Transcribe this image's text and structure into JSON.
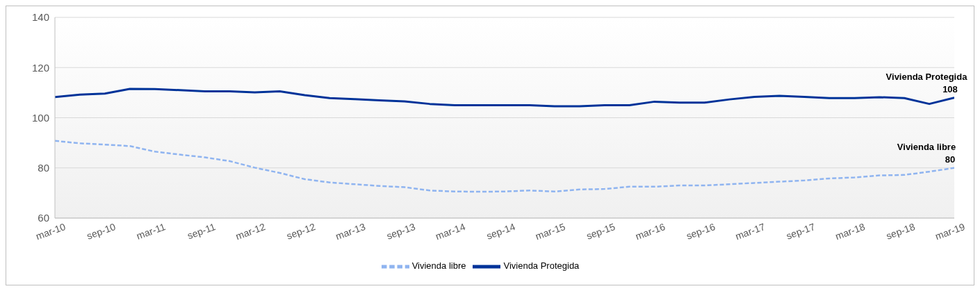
{
  "chart_data": {
    "type": "line",
    "categories": [
      "mar-10",
      null,
      "sep-10",
      null,
      "mar-11",
      null,
      "sep-11",
      null,
      "mar-12",
      null,
      "sep-12",
      null,
      "mar-13",
      null,
      "sep-13",
      null,
      "mar-14",
      null,
      "sep-14",
      null,
      "mar-15",
      null,
      "sep-15",
      null,
      "mar-16",
      null,
      "sep-16",
      null,
      "mar-17",
      null,
      "sep-17",
      null,
      "mar-18",
      null,
      "sep-18",
      null,
      "mar-19"
    ],
    "series": [
      {
        "name": "Vivienda libre",
        "color": "#8fb4f0",
        "line_style": "dashed",
        "values": [
          90.8,
          89.8,
          89.3,
          88.7,
          86.5,
          85.3,
          84.2,
          82.7,
          80.1,
          78,
          75.5,
          74.2,
          73.5,
          72.8,
          72.3,
          71,
          70.6,
          70.5,
          70.6,
          71,
          70.6,
          71.4,
          71.6,
          72.5,
          72.5,
          73,
          73,
          73.5,
          74,
          74.5,
          75,
          75.8,
          76.2,
          77,
          77.2,
          78.5,
          80
        ],
        "value_labels": [
          null,
          null,
          null,
          null,
          null,
          null,
          null,
          null,
          null,
          null,
          null,
          null,
          null,
          null,
          null,
          null,
          null,
          null,
          null,
          null,
          null,
          null,
          null,
          null,
          null,
          null,
          null,
          null,
          null,
          null,
          null,
          null,
          null,
          null,
          null,
          null,
          "80"
        ]
      },
      {
        "name": "Vivienda Protegida",
        "color": "#003399",
        "line_style": "solid",
        "values": [
          108.2,
          109.2,
          109.6,
          111.5,
          111.4,
          111,
          110.5,
          110.5,
          110.1,
          110.5,
          109,
          107.8,
          107.4,
          106.9,
          106.5,
          105.5,
          105,
          105,
          105,
          105,
          104.6,
          104.6,
          105,
          105,
          106.4,
          106,
          106,
          107.3,
          108.3,
          108.7,
          108.3,
          107.8,
          107.8,
          108.2,
          107.8,
          105.5,
          108
        ],
        "value_labels": [
          null,
          null,
          null,
          null,
          null,
          null,
          null,
          null,
          null,
          null,
          null,
          null,
          null,
          null,
          null,
          null,
          null,
          null,
          null,
          null,
          null,
          null,
          null,
          null,
          null,
          null,
          null,
          null,
          null,
          null,
          null,
          null,
          null,
          null,
          null,
          null,
          "108"
        ]
      }
    ],
    "ylim": [
      60,
      140
    ],
    "yticks": [
      60,
      80,
      100,
      120,
      140
    ],
    "grid": "y",
    "legend": "bottom",
    "marker": "none"
  }
}
